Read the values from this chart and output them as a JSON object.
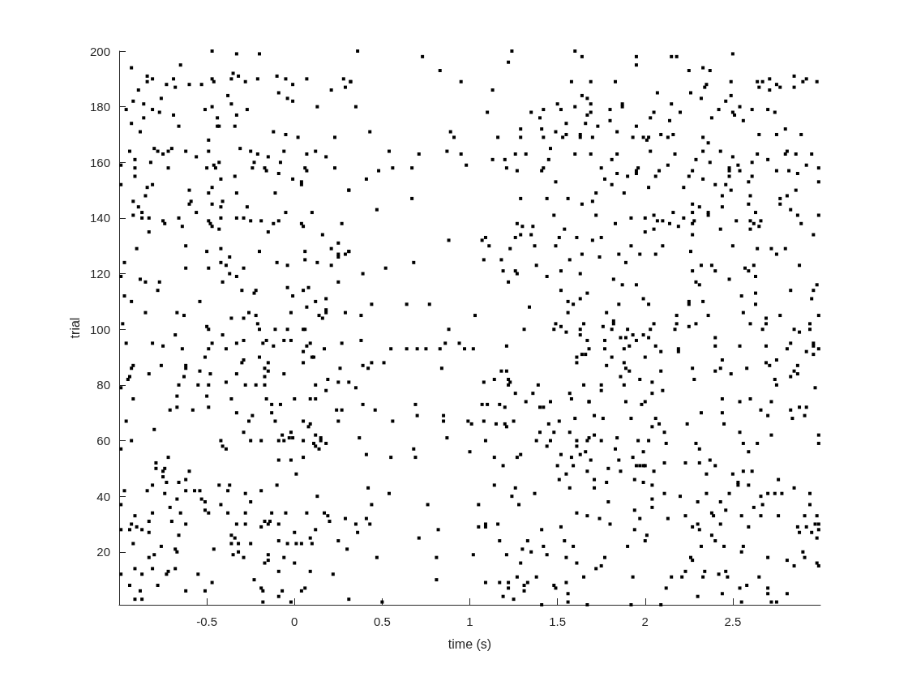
{
  "chart_data": {
    "type": "scatter",
    "xlabel": "time (s)",
    "ylabel": "trial",
    "color": "#000000",
    "marker": "square",
    "xlim": [
      -1,
      3
    ],
    "ylim": [
      1,
      200
    ],
    "xticks": [
      -0.5,
      0,
      0.5,
      1,
      1.5,
      2,
      2.5
    ],
    "yticks": [
      20,
      40,
      60,
      80,
      100,
      120,
      140,
      160,
      180,
      200
    ],
    "x": [
      -0.47,
      -0.33,
      -0.2,
      -0.65,
      -0.93,
      -0.35,
      -0.32,
      -0.84,
      -0.84,
      -0.81,
      -0.69,
      -0.47,
      -0.46,
      -0.36,
      -0.28,
      -0.21,
      -0.1,
      -0.05,
      0.07,
      0.28,
      0.32,
      0.29,
      -0.73,
      -0.68,
      -0.6,
      -0.53,
      -0.01,
      -0.89,
      0.21,
      -0.38,
      -0.09,
      -0.04,
      -0.01,
      -0.76,
      -0.92,
      -0.86,
      -0.36,
      -0.96,
      -0.81,
      -0.77,
      -0.51,
      -0.47,
      -0.27,
      0.13,
      -0.69,
      -0.33,
      -0.44,
      -0.86,
      -0.93,
      -0.66,
      -0.44,
      -0.43,
      -0.34,
      -0.88,
      -0.12,
      -0.05,
      0.02,
      0.23,
      -0.49,
      -0.94,
      -0.8,
      -0.78,
      -0.75,
      -0.72,
      -0.7,
      -0.62,
      -0.56,
      -0.49,
      -0.31,
      -0.25,
      -0.21,
      -0.15,
      -0.06,
      0.07,
      0.12,
      0.18,
      -0.91,
      -0.99,
      -0.91,
      -0.82,
      -0.72,
      -0.5,
      -0.46,
      -0.45,
      -0.43,
      -0.23,
      -0.24,
      -0.17,
      -0.16,
      -0.08,
      -0.09,
      0.06,
      0.07,
      0.23,
      -0.91,
      -0.34,
      -0.42,
      -0.01,
      0.04,
      0.04,
      -0.99,
      -0.84,
      -0.81,
      -0.47,
      -0.6,
      -0.49,
      -0.33,
      -0.11,
      0.31,
      -0.85,
      -0.92,
      -0.59,
      -0.6,
      -0.41,
      -0.47,
      -0.42,
      -0.27,
      -0.89,
      -0.87,
      -0.56,
      -0.05,
      0.1,
      -0.92,
      -0.87,
      -0.83,
      -0.75,
      -0.74,
      -0.66,
      -0.64,
      -0.49,
      -0.48,
      -0.47,
      -0.42,
      -0.43,
      -0.33,
      -0.29,
      -0.25,
      -0.19,
      -0.12,
      -0.09,
      0.04,
      0.05,
      0.27,
      -0.83,
      -0.15,
      0.16,
      0.25,
      -0.9,
      -0.62,
      -0.5,
      -0.42,
      -0.2,
      0.06,
      0.21,
      0.25,
      0.25,
      0.29,
      0.31,
      -0.37,
      0.06,
      -0.97,
      -0.42,
      -0.39,
      -0.1,
      -0.04,
      0.13,
      0.21,
      -0.62,
      -0.49,
      -0.29,
      -0.37,
      -0.33,
      -0.99,
      -0.88,
      -0.85,
      -0.77,
      -0.41,
      0.25,
      -0.78,
      -0.3,
      -0.22,
      -0.23,
      -0.04,
      0.05,
      0.08,
      -0.97,
      -0.01,
      -0.93,
      -0.54,
      0.12,
      0.18,
      0.07,
      -0.85,
      -0.67,
      -0.63,
      -0.26,
      -0.02,
      0.18,
      0.18,
      0.14,
      0.16,
      0.29,
      -0.98,
      -0.5,
      -0.36,
      -0.29,
      -0.22,
      -0.21,
      0.36,
      0.73,
      1.24,
      1.22,
      1.6,
      1.64,
      0.83,
      0.32,
      0.95,
      1.58,
      1.13,
      1.64,
      1.67,
      0.35,
      1.5,
      1.42,
      1.52,
      1.6,
      1.1,
      1.35,
      1.4,
      1.67,
      1.55,
      1.66,
      0.43,
      0.89,
      0.91,
      1.16,
      1.29,
      1.29,
      1.41,
      1.42,
      1.49,
      1.53,
      1.55,
      1.63,
      1.63,
      0.54,
      0.71,
      0.87,
      0.95,
      1.13,
      1.2,
      1.26,
      1.32,
      1.46,
      1.45,
      1.6,
      0.98,
      0.48,
      0.56,
      0.67,
      1.21,
      1.27,
      1.41,
      1.42,
      0.41,
      1.49,
      0.31,
      0.67,
      1.29,
      1.44,
      1.56,
      1.64,
      0.47,
      1.48,
      1.27,
      1.3,
      1.36,
      1.54,
      0.88,
      1.07,
      1.09,
      1.11,
      1.26,
      1.29,
      1.35,
      1.37,
      1.23,
      1.49,
      1.51,
      1.61,
      0.31,
      1.64,
      0.68,
      0.52,
      0.39,
      1.08,
      1.18,
      1.19,
      1.26,
      1.27,
      1.22,
      1.38,
      1.44,
      1.52,
      1.57,
      1.63,
      1.52,
      1.67,
      1.63,
      1.56,
      1.59,
      0.44,
      0.64,
      0.77,
      1.34,
      0.38,
      1.03,
      1.56,
      1.49,
      1.52,
      1.65,
      1.95,
      2.15,
      2.18,
      2.5,
      1.95,
      2.25,
      2.33,
      2.37,
      1.69,
      1.83,
      2.49,
      2.64,
      2.67,
      2.71,
      2.85,
      2.9,
      2.92,
      2.98,
      2.85,
      2.65,
      2.71,
      2.75,
      2.77,
      2.34,
      2.35,
      2.07,
      2.26,
      2.32,
      2.46,
      2.49,
      1.69,
      1.87,
      1.87,
      2.15,
      1.8,
      2.05,
      2.03,
      2.2,
      2.14,
      1.69,
      1.73,
      1.8,
      1.95,
      2.42,
      2.5,
      2.51,
      2.54,
      2.61,
      2.7,
      2.74,
      2.38,
      2.56,
      1.84,
      1.7,
      1.93,
      1.99,
      2.02,
      2.01,
      2.09,
      2.13,
      2.16,
      2.33,
      2.36,
      2.65,
      2.75,
      2.8,
      2.89,
      1.69,
      1.84,
      1.81,
      2.03,
      2.17,
      2.33,
      2.43,
      2.29,
      2.37,
      2.5,
      2.64,
      2.61,
      2.7,
      2.81,
      2.8,
      2.86,
      2.95,
      1.75,
      1.84,
      1.9,
      1.95,
      1.96,
      1.95,
      2.08,
      2.06,
      2.13,
      2.27,
      2.25,
      2.33,
      2.48,
      2.48,
      2.48,
      2.53,
      2.54,
      2.61,
      2.59,
      2.75,
      2.82,
      2.87,
      2.92,
      2.99,
      2.99,
      1.77,
      1.81,
      1.72,
      1.88,
      2.02,
      2.22,
      2.4,
      2.46,
      2.49,
      2.44,
      2.6,
      2.86,
      2.81,
      2.77,
      2.77,
      1.7,
      2.27,
      2.31,
      2.44,
      2.59,
      2.83,
      1.72,
      1.83,
      1.92,
      2,
      2.05,
      2.07,
      2.1,
      2.14,
      2.16,
      2.19,
      2.22,
      2.27,
      2.28,
      2.27,
      2.36,
      2.36,
      2.52,
      2.6,
      2.62,
      2.63,
      2.65,
      2.66,
      2.6,
      2.87,
      2.89,
      2.99,
      2,
      2.05,
      2.43,
      2.27,
      2.96,
      1.7,
      1.75,
      1.92,
      2.1,
      2.5,
      1.74,
      1.85,
      1.89,
      1.97,
      2.06,
      2.26,
      2.64,
      2.72,
      2.75,
      2.8,
      2.27,
      2.32,
      2.38,
      2.4,
      2.57,
      2.59,
      2.62,
      2.63,
      2.88,
      1.82,
      1.87,
      1.95,
      2.29,
      2.31,
      2.48,
      2.98,
      2.96,
      2.83,
      1.99,
      1.85,
      2.02,
      2.25,
      2.25,
      2.33,
      2.55,
      2.63,
      2.63,
      2.95,
      1.78,
      1.82,
      1.82,
      1.76,
      2.05,
      2.18,
      2.18,
      2.25,
      2.29,
      2.36,
      2.56,
      2.6,
      2.69,
      2.69,
      2.77,
      2.94,
      2.99,
      -0.49,
      -0.2,
      -0.11,
      -0.04,
      0.05,
      0.06,
      -0.68,
      -0.41,
      -0.96,
      -0.81,
      -0.75,
      -0.64,
      -0.49,
      -0.47,
      -0.39,
      -0.33,
      -0.29,
      -0.18,
      -0.16,
      -0.12,
      -0.06,
      -0.02,
      0.07,
      0.09,
      0.05,
      0.17,
      0.27,
      -0.51,
      -0.2,
      0.1,
      0.11,
      -0.92,
      -0.93,
      -0.76,
      -0.62,
      -0.62,
      -0.3,
      -0.29,
      -0.15,
      -0.17,
      -0.15,
      0.05,
      0.26,
      -0.54,
      -0.94,
      -0.95,
      -0.83,
      -0.63,
      -0.48,
      -0.33,
      -0.17,
      -0.06,
      0.19,
      0.25,
      0.31,
      -0.39,
      -0.99,
      -0.66,
      -0.55,
      -0.49,
      -0.28,
      -0.22,
      -0.17,
      0.12,
      0.18,
      -0.92,
      -0.67,
      -0.5,
      -0.36,
      -0.16,
      0,
      0.09,
      0.12,
      -0.13,
      -0.08,
      -0.71,
      -0.67,
      -0.58,
      -0.49,
      -0.33,
      -0.24,
      -0.13,
      0.24,
      0.27,
      -0.96,
      -0.26,
      -0.11,
      0.05,
      0.09,
      0.08,
      0.25,
      -0.8,
      -0.29,
      -0.07,
      -0.02,
      -0.03,
      -0.01,
      0.12,
      0.15,
      0.15,
      0.18,
      0.11,
      0.12,
      0.14,
      -0.93,
      -0.42,
      -0.41,
      -0.39,
      -0.25,
      -0.19,
      -0.09,
      -0.06,
      0.05,
      -0.99,
      -0.72,
      -0.79,
      -0.79,
      -0.75,
      -0.74,
      -0.75,
      -0.73,
      -0.6,
      -0.09,
      -0.02,
      0.05,
      0.01,
      -0.81,
      -0.62,
      -0.66,
      -0.43,
      -0.37,
      -0.1,
      -0.97,
      -0.84,
      -0.62,
      -0.57,
      -0.54,
      -0.38,
      -0.19,
      -0.74,
      -0.28,
      0.13,
      -0.67,
      -0.53,
      -0.51,
      -0.25,
      -0.99,
      -0.42,
      -0.71,
      -0.51,
      -0.49,
      -0.81,
      -0.65,
      -0.38,
      -0.28,
      -0.13,
      -0.05,
      0.07,
      0.17,
      0.19,
      0.29,
      -0.91,
      -0.93,
      -0.83,
      -0.9,
      -0.87,
      -0.94,
      -0.99,
      -0.83,
      -0.7,
      -0.62,
      -0.33,
      -0.28,
      -0.19,
      -0.17,
      -0.15,
      -0.14,
      -0.09,
      0.2,
      0.12,
      0,
      -0.66,
      -0.36,
      -0.34,
      -0.09,
      0.09,
      0.25,
      -0.92,
      -0.76,
      -0.68,
      -0.67,
      -0.46,
      -0.36,
      -0.32,
      -0.25,
      -0.04,
      0.01,
      0.04,
      0.1,
      0.3,
      -0.35,
      -0.32,
      -0.29,
      -0.15,
      -0.15,
      -0.17,
      -0.06,
      0,
      -0.83,
      -0.8,
      -0.91,
      -0.81,
      -0.72,
      -0.73,
      -0.68,
      -0.99,
      -0.87,
      -0.55,
      -0.09,
      0.09,
      0.22,
      -0.94,
      -0.78,
      -0.47,
      -0.23,
      -0.88,
      -0.62,
      -0.51,
      -0.19,
      -0.18,
      -0.07,
      0.04,
      0.06,
      -0.09,
      -0.91,
      -0.87,
      -0.18,
      -0.02,
      0.31,
      0.88,
      1.31,
      1.48,
      1.63,
      1.55,
      1.63,
      0.38,
      0.55,
      0.64,
      0.7,
      0.75,
      0.83,
      0.86,
      0.94,
      0.97,
      1.02,
      1.21,
      1.67,
      0.39,
      0.42,
      0.44,
      0.51,
      0.84,
      1.61,
      1.61,
      1.64,
      1.66,
      1.18,
      1.21,
      1.08,
      1.14,
      1.22,
      1.23,
      1.22,
      1.39,
      1.65,
      0.35,
      1.26,
      1.36,
      1.57,
      1.58,
      1.32,
      1.46,
      1.68,
      0.39,
      0.46,
      0.69,
      0.7,
      0.85,
      0.85,
      0.56,
      1.07,
      1.1,
      1.17,
      1.2,
      1.4,
      1.42,
      0.99,
      1.01,
      1.08,
      1.15,
      1.2,
      1.21,
      1.25,
      1.45,
      1.51,
      1.6,
      0.37,
      0.87,
      1.09,
      1.4,
      1.38,
      1.48,
      1.46,
      1.44,
      1.57,
      1.61,
      1.61,
      1.67,
      0.68,
      0.41,
      0.55,
      0.69,
      1,
      1.14,
      1.19,
      1.27,
      1.29,
      1.52,
      1.58,
      1.63,
      1.66,
      1.5,
      1.59,
      1.67,
      1.55,
      1.51,
      1.14,
      1.26,
      1.24,
      1.28,
      1.37,
      1.57,
      0.42,
      0.54,
      0.44,
      0.76,
      1.05,
      1.61,
      1.67,
      0.41,
      0.35,
      0.43,
      0.36,
      0.82,
      0.71,
      1.05,
      1.09,
      1.09,
      1.16,
      1.41,
      1.52,
      1.17,
      1.33,
      1.54,
      1.42,
      1.59,
      1.3,
      1.35,
      0.47,
      0.81,
      1.02,
      1.21,
      1.44,
      1.55,
      1.61,
      1.29,
      0.81,
      1.09,
      1.17,
      1.22,
      1.27,
      1.38,
      1.65,
      1.22,
      1.31,
      1.33,
      1.31,
      1.48,
      1.49,
      1.55,
      1.56,
      1.19,
      1.25,
      0.5,
      1.56,
      1.41,
      1.67,
      1.81,
      1.9,
      2.03,
      2.17,
      2.67,
      2.85,
      2.88,
      2.94,
      1.77,
      1.86,
      1.89,
      1.93,
      1.95,
      1.99,
      2.02,
      1.91,
      1.88,
      1.68,
      1.77,
      1.81,
      2,
      2.06,
      2.09,
      2.19,
      2.19,
      2.4,
      2.4,
      2.54,
      2.69,
      2.81,
      2.83,
      2.96,
      2.96,
      2.99,
      2.92,
      2.96,
      1.78,
      1.88,
      1.89,
      1.91,
      1.86,
      1.88,
      1.97,
      2.04,
      2.04,
      2.1,
      2.09,
      1.75,
      1.75,
      2.27,
      2.28,
      2.4,
      2.43,
      2.44,
      2.49,
      2.58,
      2.69,
      2.71,
      2.75,
      2.74,
      2.75,
      2.83,
      2.85,
      2.87,
      2.87,
      2.97,
      1.68,
      1.89,
      1.98,
      2,
      1.71,
      1.76,
      1.92,
      2.06,
      2.04,
      2.08,
      2.24,
      2.32,
      2.44,
      2.44,
      2.45,
      2.54,
      2.6,
      2.66,
      2.7,
      2.72,
      2.83,
      2.88,
      2.92,
      2.84,
      2.91,
      1.68,
      1.71,
      1.75,
      1.84,
      1.96,
      2.02,
      2.11,
      2.12,
      1.83,
      1.99,
      2.29,
      2.31,
      2.54,
      2.56,
      2.64,
      2.59,
      2.72,
      2.99,
      2.99,
      1.69,
      1.85,
      1.93,
      1.95,
      1.97,
      1.99,
      2,
      1.79,
      1.86,
      2.05,
      2.11,
      2.23,
      2.31,
      2.37,
      2.4,
      2.35,
      2.5,
      2.56,
      2.61,
      1.71,
      1.71,
      1.78,
      1.94,
      1.99,
      2.04,
      2.53,
      2.53,
      2.59,
      2.76,
      2.85,
      1.79,
      2.11,
      2.2,
      2.04,
      2.04,
      1.94,
      1.97,
      1.94,
      2.01,
      2,
      1.9,
      1.8,
      1.74,
      2.13,
      2.23,
      2.3,
      2.35,
      2.43,
      2.46,
      2.48,
      2.38,
      2.39,
      2.27,
      2.3,
      2.31,
      2.38,
      2.4,
      2.43,
      2.55,
      2.59,
      2.62,
      2.66,
      2.66,
      2.67,
      2.7,
      2.74,
      2.78,
      2.76,
      2.94,
      2.94,
      2.91,
      2.98,
      2.87,
      2.88,
      2.92,
      2.95,
      2.97,
      2.99,
      2.99,
      2.98,
      2.32,
      2.45,
      2.56,
      2.55,
      2.9,
      2.91,
      1.77,
      1.75,
      1.72,
      2.26,
      2.27,
      2.7,
      2.81,
      2.85,
      2.98,
      2.99,
      1.93,
      2.15,
      2.21,
      2.23,
      2.33,
      2.34,
      2.42,
      2.46,
      2.47,
      2.65,
      2.12,
      2.3,
      2.44,
      2.54,
      2.58,
      2.7,
      2.7,
      2.81,
      2.55,
      2.72,
      2.75,
      1.92,
      2.09
    ],
    "values": [
      200,
      199,
      199,
      195,
      194,
      192,
      191,
      191,
      189,
      190,
      190,
      190,
      189,
      190,
      189,
      190,
      191,
      190,
      190,
      190,
      189,
      187,
      188,
      187,
      188,
      188,
      188,
      186,
      186,
      184,
      185,
      183,
      182,
      183,
      182,
      181,
      181,
      179,
      179,
      178,
      179,
      180,
      179,
      180,
      177,
      177,
      176,
      176,
      174,
      173,
      173,
      173,
      173,
      171,
      171,
      170,
      169,
      169,
      168,
      164,
      165,
      164,
      163,
      164,
      165,
      164,
      162,
      164,
      165,
      164,
      163,
      162,
      164,
      163,
      164,
      162,
      161,
      159,
      158,
      160,
      158,
      158,
      159,
      158,
      160,
      160,
      158,
      158,
      157,
      160,
      156,
      158,
      157,
      158,
      155,
      155,
      154,
      154,
      153,
      152,
      152,
      151,
      152,
      151,
      150,
      149,
      149,
      149,
      150,
      148,
      146,
      146,
      145,
      146,
      145,
      144,
      144,
      144,
      142,
      142,
      142,
      142,
      141,
      140,
      140,
      139,
      138,
      140,
      137,
      139,
      138,
      137,
      140,
      136,
      140,
      140,
      139,
      139,
      138,
      139,
      138,
      137,
      138,
      135,
      135,
      134,
      131,
      129,
      130,
      128,
      129,
      128,
      128,
      129,
      127,
      126,
      127,
      128,
      126,
      125,
      124,
      124,
      123,
      124,
      123,
      124,
      123,
      122,
      122,
      122,
      120,
      119,
      119,
      118,
      117,
      117,
      117,
      117,
      114,
      114,
      114,
      113,
      115,
      114,
      115,
      112,
      112,
      110,
      110,
      110,
      111,
      108,
      106,
      106,
      105,
      106,
      106,
      107,
      106,
      105,
      104,
      106,
      102,
      101,
      104,
      104,
      105,
      102,
      200,
      198,
      200,
      196,
      200,
      198,
      193,
      189,
      189,
      189,
      186,
      184,
      183,
      180,
      181,
      179,
      179,
      180,
      178,
      178,
      176,
      177,
      174,
      174,
      171,
      171,
      169,
      169,
      172,
      169,
      172,
      169,
      171,
      169,
      170,
      170,
      169,
      164,
      163,
      164,
      163,
      161,
      161,
      163,
      163,
      165,
      161,
      163,
      159,
      157,
      158,
      158,
      158,
      157,
      157,
      158,
      154,
      153,
      150,
      147,
      147,
      147,
      147,
      145,
      143,
      141,
      138,
      137,
      137,
      136,
      132,
      132,
      133,
      130,
      133,
      134,
      134,
      130,
      129,
      130,
      133,
      133,
      128,
      127,
      124,
      122,
      120,
      125,
      125,
      121,
      121,
      120,
      117,
      123,
      119,
      121,
      125,
      120,
      114,
      113,
      111,
      110,
      109,
      109,
      109,
      109,
      108,
      105,
      105,
      106,
      102,
      101,
      102,
      198,
      198,
      198,
      199,
      195,
      193,
      194,
      193,
      189,
      189,
      189,
      189,
      189,
      190,
      191,
      189,
      190,
      189,
      187,
      187,
      186,
      188,
      187,
      187,
      188,
      185,
      185,
      183,
      182,
      184,
      181,
      181,
      180,
      181,
      179,
      178,
      176,
      178,
      175,
      178,
      173,
      175,
      173,
      179,
      178,
      177,
      180,
      179,
      179,
      178,
      176,
      175,
      171,
      169,
      169,
      169,
      169,
      168,
      170,
      169,
      170,
      169,
      167,
      170,
      170,
      172,
      170,
      163,
      163,
      161,
      164,
      163,
      164,
      164,
      161,
      160,
      162,
      163,
      160,
      161,
      164,
      163,
      163,
      163,
      158,
      156,
      155,
      157,
      158,
      156,
      157,
      155,
      159,
      157,
      155,
      154,
      158,
      157,
      155,
      159,
      157,
      155,
      153,
      157,
      157,
      156,
      159,
      158,
      153,
      154,
      152,
      149,
      149,
      151,
      151,
      152,
      152,
      150,
      148,
      148,
      150,
      148,
      147,
      145,
      146,
      145,
      144,
      144,
      145,
      143,
      141,
      138,
      140,
      140,
      141,
      139,
      139,
      138,
      142,
      137,
      140,
      142,
      139,
      138,
      142,
      141,
      139,
      139,
      138,
      142,
      137,
      139,
      136,
      141,
      138,
      141,
      135,
      136,
      136,
      134,
      134,
      132,
      133,
      130,
      130,
      130,
      126,
      127,
      124,
      127,
      127,
      128,
      129,
      129,
      127,
      129,
      121,
      123,
      123,
      121,
      122,
      121,
      123,
      119,
      123,
      118,
      116,
      116,
      117,
      116,
      118,
      116,
      114,
      114,
      111,
      109,
      109,
      110,
      109,
      110,
      112,
      113,
      109,
      111,
      106,
      103,
      102,
      101,
      102,
      105,
      102,
      101,
      102,
      105,
      106,
      102,
      104,
      102,
      105,
      102,
      105,
      100,
      100,
      100,
      100,
      100,
      100,
      98,
      98,
      95,
      95,
      94,
      93,
      93,
      95,
      93,
      95,
      96,
      95,
      96,
      94,
      96,
      96,
      94,
      95,
      92,
      93,
      95,
      90,
      90,
      90,
      90,
      87,
      86,
      87,
      87,
      86,
      88,
      89,
      88,
      86,
      85,
      88,
      86,
      85,
      83,
      82,
      84,
      83,
      84,
      84,
      83,
      84,
      82,
      81,
      81,
      81,
      79,
      80,
      80,
      80,
      80,
      80,
      80,
      80,
      78,
      75,
      76,
      76,
      75,
      75,
      75,
      75,
      75,
      73,
      73,
      71,
      72,
      71,
      72,
      70,
      69,
      70,
      71,
      71,
      67,
      67,
      67,
      67,
      66,
      65,
      67,
      64,
      63,
      62,
      63,
      61,
      61,
      62,
      61,
      60,
      59,
      59,
      58,
      57,
      60,
      60,
      58,
      57,
      60,
      60,
      60,
      60,
      60,
      57,
      54,
      52,
      50,
      49,
      50,
      47,
      45,
      49,
      53,
      53,
      54,
      48,
      44,
      46,
      45,
      44,
      44,
      44,
      42,
      42,
      42,
      42,
      42,
      42,
      42,
      41,
      41,
      40,
      39,
      39,
      38,
      38,
      37,
      37,
      36,
      35,
      34,
      34,
      34,
      34,
      34,
      34,
      34,
      34,
      34,
      33,
      32,
      33,
      30,
      31,
      29,
      28,
      28,
      28,
      27,
      31,
      30,
      30,
      30,
      29,
      31,
      30,
      31,
      30,
      31,
      28,
      27,
      26,
      26,
      25,
      24,
      25,
      24,
      23,
      22,
      21,
      20,
      21,
      23,
      23,
      23,
      23,
      23,
      23,
      23,
      21,
      19,
      20,
      18,
      19,
      17,
      16,
      18,
      16,
      18,
      19,
      14,
      14,
      13,
      12,
      14,
      12,
      12,
      12,
      13,
      13,
      12,
      8,
      8,
      9,
      10,
      6,
      6,
      6,
      7,
      6,
      6,
      6,
      7,
      4,
      3,
      3,
      2,
      2,
      3,
      100,
      100,
      100,
      100,
      99,
      98,
      96,
      93,
      93,
      93,
      93,
      93,
      95,
      95,
      93,
      93,
      94,
      96,
      87,
      86,
      88,
      88,
      86,
      90,
      88,
      91,
      91,
      85,
      85,
      81,
      82,
      82,
      81,
      80,
      80,
      80,
      79,
      77,
      77,
      77,
      75,
      74,
      74,
      74,
      73,
      71,
      73,
      69,
      69,
      67,
      67,
      73,
      73,
      73,
      72,
      72,
      72,
      67,
      66,
      67,
      66,
      66,
      65,
      67,
      66,
      67,
      68,
      61,
      61,
      60,
      63,
      60,
      63,
      60,
      58,
      63,
      60,
      58,
      60,
      57,
      55,
      54,
      54,
      56,
      54,
      51,
      54,
      55,
      55,
      54,
      55,
      56,
      51,
      51,
      49,
      48,
      46,
      44,
      43,
      40,
      37,
      41,
      43,
      43,
      41,
      37,
      37,
      37,
      34,
      33,
      32,
      30,
      30,
      27,
      28,
      25,
      29,
      30,
      29,
      30,
      28,
      29,
      24,
      24,
      24,
      22,
      22,
      21,
      20,
      18,
      18,
      19,
      19,
      19,
      18,
      16,
      16,
      10,
      9,
      9,
      9,
      11,
      11,
      11,
      7,
      8,
      9,
      6,
      8,
      7,
      9,
      5,
      4,
      3,
      2,
      2,
      1,
      1,
      100,
      100,
      100,
      100,
      100,
      100,
      99,
      100,
      96,
      97,
      97,
      98,
      96,
      98,
      97,
      94,
      93,
      93,
      93,
      90,
      90,
      94,
      92,
      93,
      92,
      97,
      94,
      94,
      94,
      93,
      95,
      95,
      94,
      93,
      92,
      91,
      87,
      88,
      86,
      85,
      83,
      80,
      82,
      81,
      77,
      78,
      85,
      78,
      80,
      86,
      82,
      85,
      86,
      89,
      84,
      86,
      88,
      87,
      89,
      82,
      80,
      83,
      85,
      84,
      87,
      79,
      74,
      74,
      73,
      74,
      69,
      68,
      68,
      68,
      65,
      66,
      66,
      70,
      75,
      70,
      66,
      74,
      75,
      71,
      69,
      74,
      71,
      72,
      72,
      68,
      69,
      61,
      62,
      60,
      61,
      60,
      60,
      63,
      59,
      57,
      56,
      59,
      57,
      63,
      59,
      59,
      56,
      62,
      62,
      59,
      53,
      53,
      54,
      51,
      51,
      51,
      51,
      50,
      49,
      49,
      52,
      52,
      52,
      53,
      51,
      48,
      48,
      49,
      49,
      46,
      43,
      45,
      46,
      45,
      44,
      44,
      45,
      44,
      46,
      43,
      38,
      41,
      40,
      39,
      36,
      35,
      32,
      28,
      26,
      24,
      22,
      30,
      32,
      32,
      33,
      38,
      41,
      38,
      35,
      41,
      34,
      33,
      29,
      30,
      28,
      26,
      24,
      30,
      33,
      29,
      36,
      33,
      40,
      37,
      41,
      41,
      41,
      33,
      41,
      37,
      33,
      33,
      29,
      27,
      29,
      27,
      30,
      30,
      28,
      25,
      22,
      22,
      22,
      20,
      20,
      18,
      18,
      15,
      14,
      18,
      17,
      18,
      17,
      15,
      16,
      15,
      11,
      11,
      11,
      13,
      11,
      13,
      12,
      13,
      11,
      11,
      7,
      4,
      5,
      7,
      8,
      7,
      5,
      5,
      2,
      2,
      2,
      1,
      1
    ]
  }
}
